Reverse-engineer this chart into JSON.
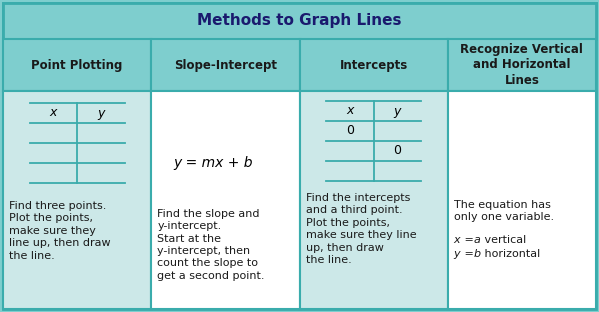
{
  "title": "Methods to Graph Lines",
  "header_bg": "#7ecece",
  "cell_bg_blue": "#cce8e8",
  "cell_bg_white": "#ffffff",
  "outer_bg": "#7ecece",
  "border_color": "#3aacac",
  "title_color": "#1a1a6e",
  "header_text_color": "#1a1a1a",
  "body_text_color": "#1a1a1a",
  "col_headers": [
    "Point Plotting",
    "Slope-Intercept",
    "Intercepts",
    "Recognize Vertical\nand Horizontal\nLines"
  ],
  "col_bg": [
    "blue",
    "white",
    "blue",
    "white"
  ],
  "col1_body": "Find three points.\nPlot the points,\nmake sure they\nline up, then draw\nthe line.",
  "col2_body": "Find the slope and\ny-intercept.\nStart at the\ny-intercept, then\ncount the slope to\nget a second point.",
  "col3_body": "Find the intercepts\nand a third point.\nPlot the points,\nmake sure they line\nup, then draw\nthe line.",
  "col4_body": "The equation has\nonly one variable.",
  "mini_table_color": "#3aacac",
  "figsize": [
    5.99,
    3.12
  ],
  "dpi": 100
}
